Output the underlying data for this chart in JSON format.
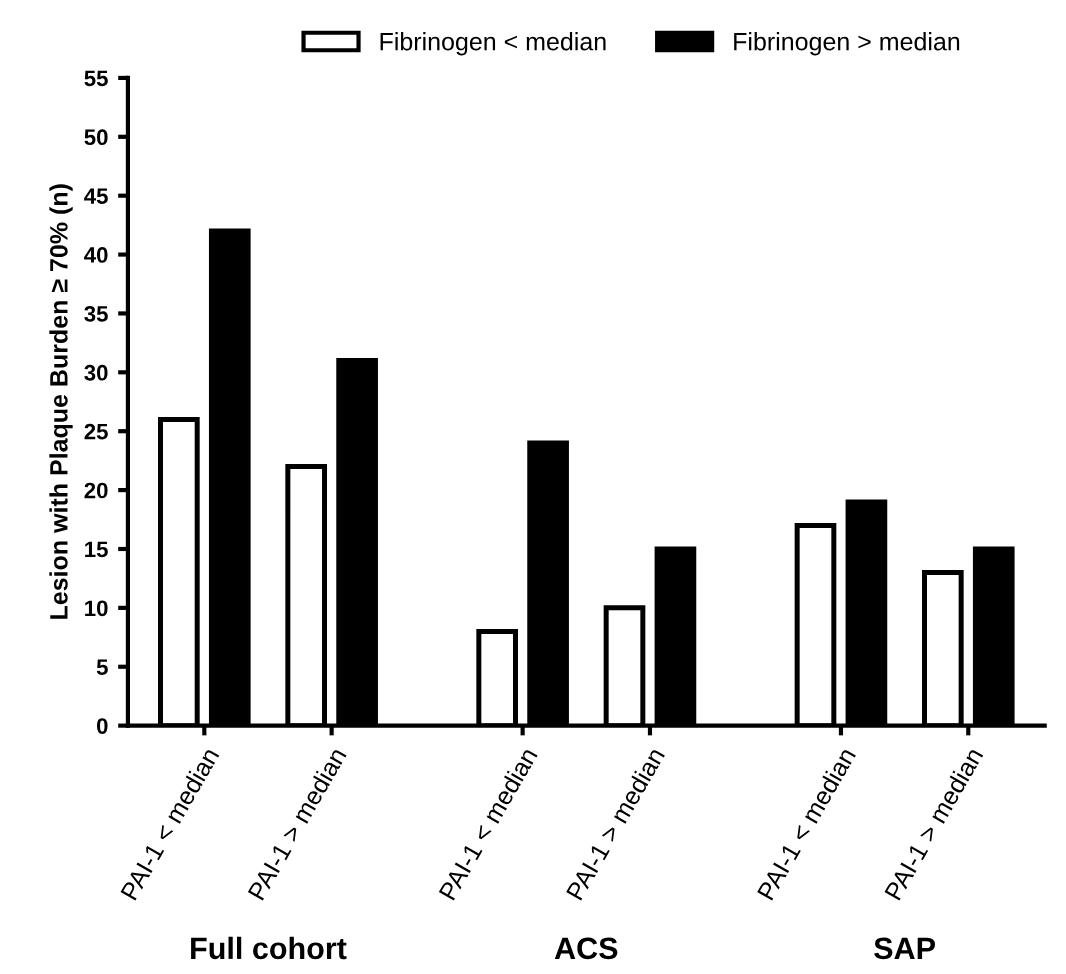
{
  "chart_data": {
    "type": "bar",
    "ylabel": "Lesion with Plaque Burden ≥ 70% (n)",
    "categories": [
      "PAI-1 < median",
      "PAI-1 > median",
      "PAI-1 < median",
      "PAI-1 > median",
      "PAI-1 < median",
      "PAI-1 > median"
    ],
    "series": [
      {
        "name": "Fibrinogen < median",
        "color": "#ffffff",
        "values": [
          26,
          22,
          8,
          10,
          17,
          13
        ]
      },
      {
        "name": "Fibrinogen > median",
        "color": "#000000",
        "values": [
          42,
          31,
          24,
          15,
          19,
          15
        ]
      }
    ],
    "annotations": [
      "Full cohort",
      "ACS",
      "SAP"
    ],
    "ylim": [
      0,
      55
    ],
    "yticks": [
      0,
      5,
      10,
      15,
      20,
      25,
      30,
      35,
      40,
      45,
      50,
      55
    ],
    "grid": false,
    "legend": "top"
  }
}
